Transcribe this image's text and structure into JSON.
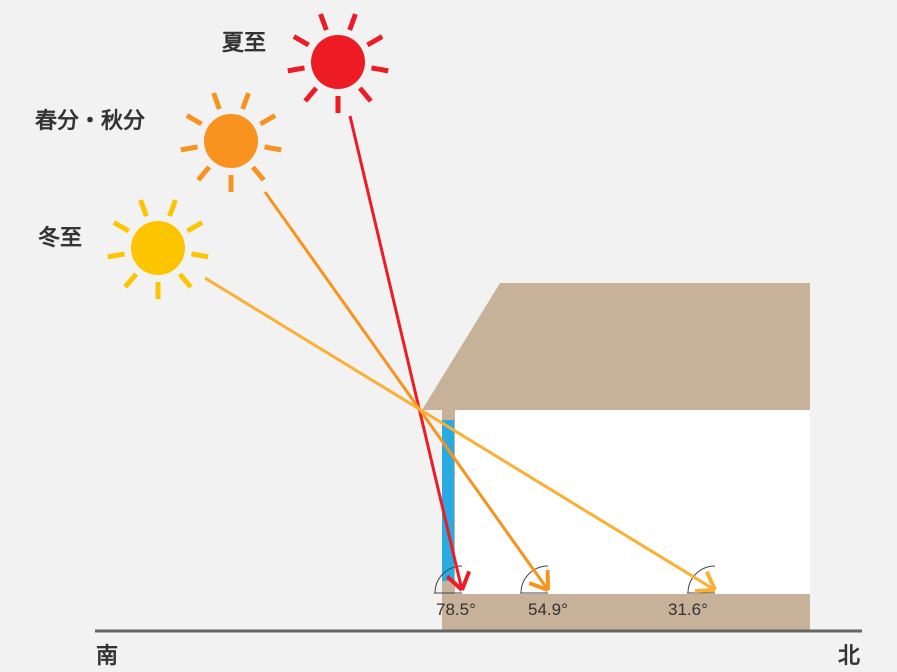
{
  "seasons": [
    {
      "label": "夏至",
      "color": "#ed1c24",
      "angle_label": "78.5°"
    },
    {
      "label": "春分・秋分",
      "color": "#f7931e",
      "angle_label": "54.9°"
    },
    {
      "label": "冬至",
      "color": "#fcc500",
      "angle_label": "31.6°"
    }
  ],
  "ray_colors": [
    "#ed1c24",
    "#f7941d",
    "#fbb034"
  ],
  "colors": {
    "house": "#c7b299",
    "window": "#29abe2",
    "interior": "#ffffff",
    "ground": "#666666"
  },
  "directions": {
    "south": "南",
    "north": "北"
  }
}
